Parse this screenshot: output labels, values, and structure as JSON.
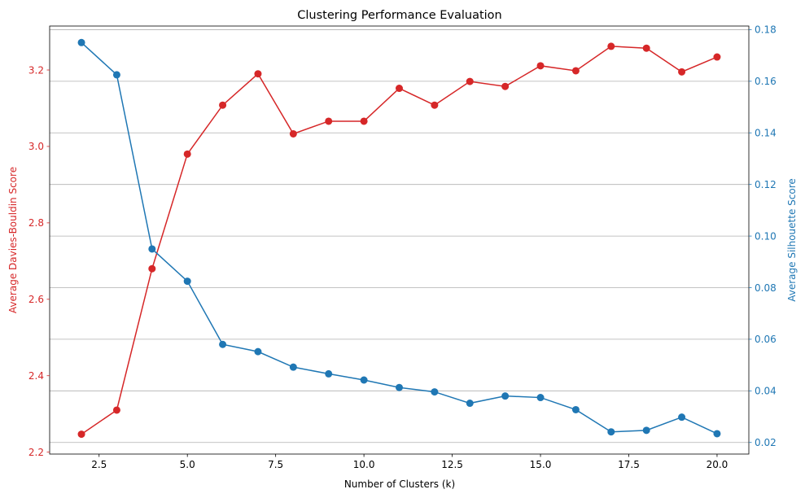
{
  "chart_data": {
    "type": "line",
    "title": "Clustering Performance Evaluation",
    "xlabel": "Number of Clusters (k)",
    "ylabel_left": "Average Davies-Bouldin Score",
    "ylabel_right": "Average Silhouette Score",
    "xlim": [
      1.1,
      20.9
    ],
    "ylim_left": [
      2.195,
      3.315
    ],
    "ylim_right": [
      0.0155,
      0.1814
    ],
    "x_ticks": [
      2.5,
      5.0,
      7.5,
      10.0,
      12.5,
      15.0,
      17.5,
      20.0
    ],
    "x_tick_labels": [
      "2.5",
      "5.0",
      "7.5",
      "10.0",
      "12.5",
      "15.0",
      "17.5",
      "20.0"
    ],
    "y_left_ticks": [
      2.2,
      2.4,
      2.6,
      2.8,
      3.0,
      3.2
    ],
    "y_left_tick_labels": [
      "2.2",
      "2.4",
      "2.6",
      "2.8",
      "3.0",
      "3.2"
    ],
    "y_right_ticks": [
      0.02,
      0.04,
      0.06,
      0.08,
      0.1,
      0.12,
      0.14,
      0.16,
      0.18
    ],
    "y_right_tick_labels": [
      "0.02",
      "0.04",
      "0.06",
      "0.08",
      "0.10",
      "0.12",
      "0.14",
      "0.16",
      "0.18"
    ],
    "grid": "horizontal lines at right axis ticks",
    "x": [
      2,
      3,
      4,
      5,
      6,
      7,
      8,
      9,
      10,
      11,
      12,
      13,
      14,
      15,
      16,
      17,
      18,
      19,
      20
    ],
    "series": [
      {
        "axis": "left",
        "color": "#d62728",
        "values": [
          2.247,
          2.31,
          2.68,
          2.98,
          3.108,
          3.19,
          3.033,
          3.066,
          3.066,
          3.152,
          3.108,
          3.17,
          3.157,
          3.211,
          3.198,
          3.262,
          3.257,
          3.195,
          3.234
        ]
      },
      {
        "axis": "right",
        "color": "#1f77b4",
        "values": [
          0.175,
          0.1625,
          0.095,
          0.0825,
          0.058,
          0.0552,
          0.0492,
          0.0466,
          0.0442,
          0.0413,
          0.0396,
          0.0352,
          0.038,
          0.0374,
          0.0327,
          0.0241,
          0.0247,
          0.0298,
          0.0234
        ]
      }
    ]
  }
}
